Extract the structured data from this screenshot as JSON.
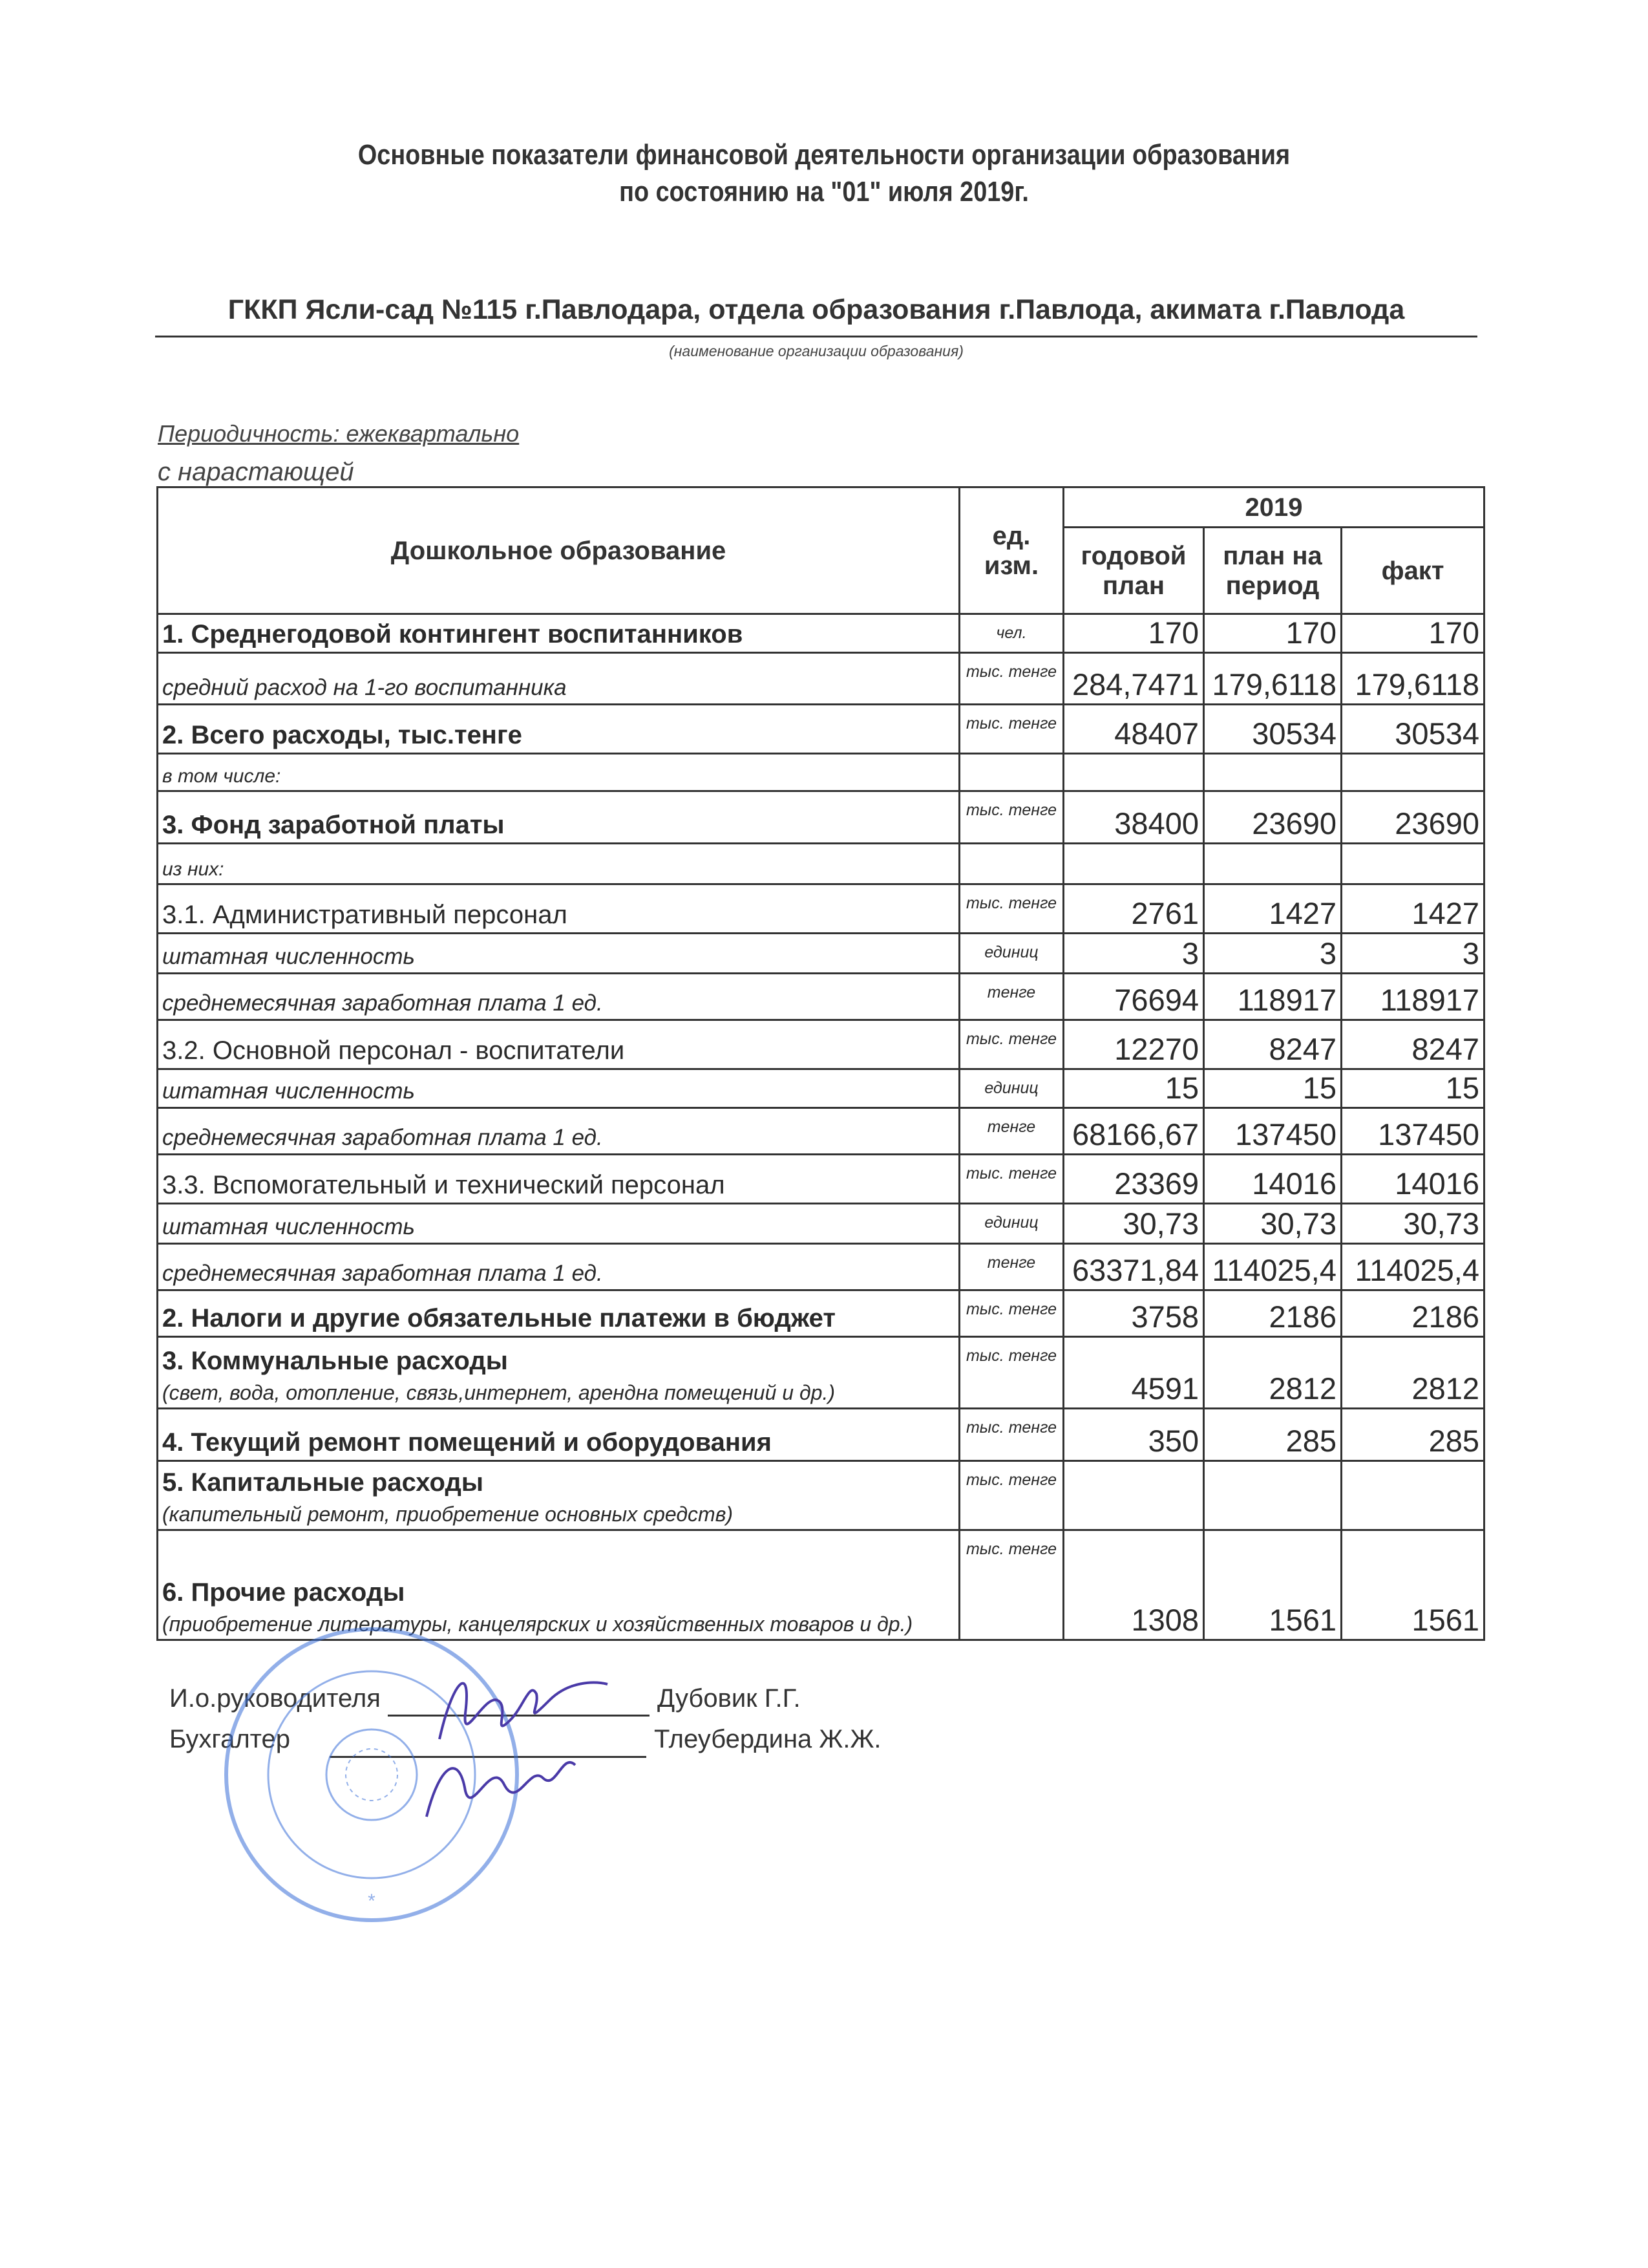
{
  "header": {
    "title_line1": "Основные показатели финансовой деятельности организации образования",
    "title_line2": "по состоянию на \"01\" июля  2019г.",
    "organization": "ГККП Ясли-сад №115 г.Павлодара, отдела образования г.Павлода, акимата г.Павлода",
    "organization_caption": "(наименование организации образования)",
    "periodicity": "Периодичность: ежеквартально",
    "cumulative": "с нарастающей"
  },
  "table": {
    "col_title": "Дошкольное образование",
    "col_unit": "ед. изм.",
    "year": "2019",
    "col_annual": "годовой план",
    "col_period": "план на период",
    "col_fact": "факт",
    "rows": [
      {
        "label": "1. Среднегодовой контингент воспитанников",
        "style": "bold",
        "unit": "чел.",
        "values": [
          "170",
          "170",
          "170"
        ]
      },
      {
        "label": "средний расход на 1-го воспитанника",
        "style": "italic",
        "unit": "тыс. тенге",
        "values": [
          "284,7471",
          "179,6118",
          "179,6118"
        ]
      },
      {
        "label": "2. Всего расходы, тыс.тенге",
        "style": "bold",
        "unit": "тыс. тенге",
        "values": [
          "48407",
          "30534",
          "30534"
        ]
      },
      {
        "label": "в том числе:",
        "style": "small",
        "unit": "",
        "values": [
          "",
          "",
          ""
        ]
      },
      {
        "label": "3. Фонд заработной платы",
        "style": "bold",
        "unit": "тыс. тенге",
        "values": [
          "38400",
          "23690",
          "23690"
        ]
      },
      {
        "label": "из них:",
        "style": "small",
        "unit": "",
        "values": [
          "",
          "",
          ""
        ]
      },
      {
        "label": "3.1. Административный персонал",
        "style": "normal",
        "unit": "тыс. тенге",
        "values": [
          "2761",
          "1427",
          "1427"
        ]
      },
      {
        "label": "штатная численность",
        "style": "italic",
        "unit": "единиц",
        "values": [
          "3",
          "3",
          "3"
        ]
      },
      {
        "label": "среднемесячная заработная плата 1 ед.",
        "style": "italic",
        "unit": "тенге",
        "values": [
          "76694",
          "118917",
          "118917"
        ]
      },
      {
        "label": "3.2. Основной персонал - воспитатели",
        "style": "normal",
        "unit": "тыс. тенге",
        "values": [
          "12270",
          "8247",
          "8247"
        ]
      },
      {
        "label": "штатная численность",
        "style": "italic",
        "unit": "единиц",
        "values": [
          "15",
          "15",
          "15"
        ]
      },
      {
        "label": "среднемесячная заработная плата 1 ед.",
        "style": "italic",
        "unit": "тенге",
        "values": [
          "68166,67",
          "137450",
          "137450"
        ]
      },
      {
        "label": "3.3. Вспомогательный и технический персонал",
        "style": "normal",
        "unit": "тыс. тенге",
        "values": [
          "23369",
          "14016",
          "14016"
        ]
      },
      {
        "label": "штатная численность",
        "style": "italic",
        "unit": "единиц",
        "values": [
          "30,73",
          "30,73",
          "30,73"
        ]
      },
      {
        "label": "среднемесячная заработная плата 1 ед.",
        "style": "italic",
        "unit": "тенге",
        "values": [
          "63371,84",
          "114025,4",
          "114025,4"
        ]
      },
      {
        "label": "2. Налоги и другие обязательные платежи в бюджет",
        "style": "bold",
        "unit": "тыс. тенге",
        "values": [
          "3758",
          "2186",
          "2186"
        ]
      },
      {
        "label": "3. Коммунальные расходы",
        "sublabel": "(свет, вода, отопление, связь,интернет, арендна помещений и др.)",
        "style": "bold",
        "unit": "тыс. тенге",
        "values": [
          "4591",
          "2812",
          "2812"
        ]
      },
      {
        "label": "4. Текущий ремонт помещений и оборудования",
        "style": "bold",
        "unit": "тыс. тенге",
        "values": [
          "350",
          "285",
          "285"
        ]
      },
      {
        "label": "5. Капитальные расходы",
        "sublabel": "(капительный ремонт, приобретение основных средств)",
        "style": "bold",
        "unit": "тыс. тенге",
        "values": [
          "",
          "",
          ""
        ]
      },
      {
        "label": "6. Прочие расходы",
        "sublabel": "(приобретение литературы, канцелярских и хозяйственных товаров и др.)",
        "style": "bold",
        "unit": "тыс. тенге",
        "values": [
          "1308",
          "1561",
          "1561"
        ]
      }
    ]
  },
  "signatures": {
    "director_role": "И.о.руководителя",
    "director_name": "Дубовик Г.Г.",
    "accountant_role": "Бухгалтер",
    "accountant_name": "Тлеубердина Ж.Ж."
  },
  "colors": {
    "ink": "#2a2a2a",
    "stamp": "#3a6fd8",
    "signature": "#4a3aa8"
  }
}
